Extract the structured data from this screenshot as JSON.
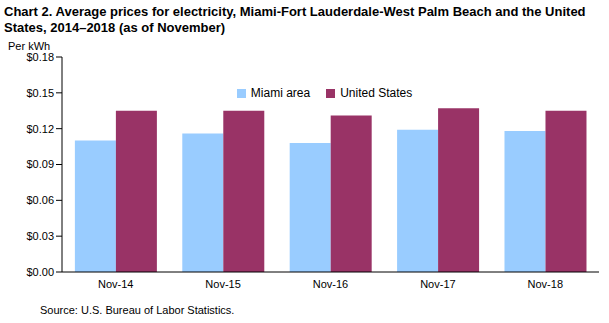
{
  "chart_data": {
    "type": "bar",
    "title": "Chart 2. Average prices for electricity, Miami-Fort Lauderdale-West Palm Beach and the United States, 2014–2018 (as of November)",
    "y_label": "Per kWh",
    "source": "Source: U.S. Bureau of Labor Statistics.",
    "categories": [
      "Nov-14",
      "Nov-15",
      "Nov-16",
      "Nov-17",
      "Nov-18"
    ],
    "series": [
      {
        "name": "Miami area",
        "color": "#99ccff",
        "values": [
          0.11,
          0.116,
          0.108,
          0.119,
          0.118
        ]
      },
      {
        "name": "United States",
        "color": "#993366",
        "values": [
          0.135,
          0.135,
          0.131,
          0.137,
          0.135
        ]
      }
    ],
    "ylim": [
      0,
      0.18
    ],
    "yticks": [
      {
        "value": 0,
        "label": "$0.00"
      },
      {
        "value": 0.03,
        "label": "$0.03"
      },
      {
        "value": 0.06,
        "label": "$0.06"
      },
      {
        "value": 0.09,
        "label": "$0.09"
      },
      {
        "value": 0.12,
        "label": "$0.12"
      },
      {
        "value": 0.15,
        "label": "$0.15"
      },
      {
        "value": 0.18,
        "label": "$0.18"
      }
    ],
    "grid": false,
    "legend": "top"
  }
}
